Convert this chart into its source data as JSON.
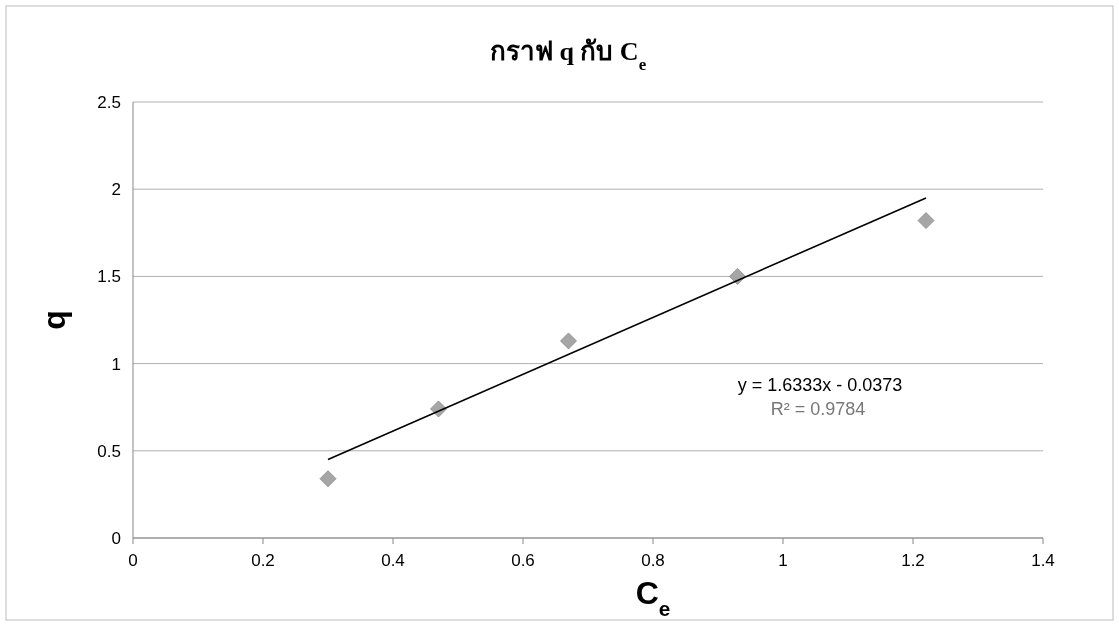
{
  "chart_data": {
    "type": "scatter",
    "title": "กราฟ q กับ C$_{e}$",
    "xlabel": "C$_{e}$",
    "ylabel": "q",
    "xlim": [
      0,
      1.4
    ],
    "xticks": [
      0,
      0.2,
      0.4,
      0.6,
      0.8,
      1,
      1.2,
      1.4
    ],
    "ylim": [
      0,
      2.5
    ],
    "yticks": [
      0,
      0.5,
      1,
      1.5,
      2,
      2.5
    ],
    "grid": "y",
    "series": [
      {
        "type": "scatter",
        "marker": "diamond",
        "color": "#a6a6a6",
        "x": [
          0.3,
          0.47,
          0.67,
          0.93,
          1.22
        ],
        "values": [
          0.34,
          0.74,
          1.13,
          1.5,
          1.82
        ]
      },
      {
        "type": "line",
        "marker": "none",
        "color": "#000000",
        "x": [
          0.3,
          1.22
        ],
        "values": [
          0.45,
          1.95
        ]
      }
    ],
    "annotations": [
      "y = 1.6333x - 0.0373",
      "R² = 0.9784"
    ]
  }
}
